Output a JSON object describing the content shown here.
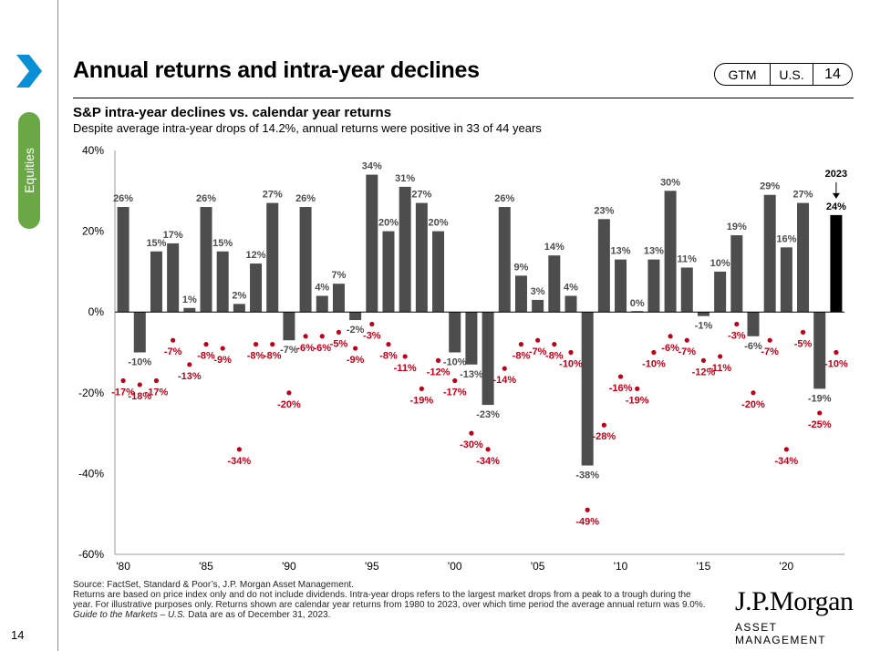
{
  "page_number": "14",
  "side_tab": "Equities",
  "icons": {
    "nav": "chevron-right-icon"
  },
  "colors": {
    "accent": "#69a845",
    "chevron": "#0a8fd6",
    "bar": "#4d4d4d",
    "bar_highlight": "#000000",
    "decline": "#c00018"
  },
  "title": "Annual returns and intra-year declines",
  "badge": {
    "gtm": "GTM",
    "region": "U.S.",
    "page": "14"
  },
  "subtitle": "S&P intra-year declines vs. calendar year returns",
  "subsubtitle": "Despite average intra-year drops of 14.2%, annual returns were positive in 33 of 44 years",
  "chart_data": {
    "type": "bar",
    "x": [
      1980,
      1981,
      1982,
      1983,
      1984,
      1985,
      1986,
      1987,
      1988,
      1989,
      1990,
      1991,
      1992,
      1993,
      1994,
      1995,
      1996,
      1997,
      1998,
      1999,
      2000,
      2001,
      2002,
      2003,
      2004,
      2005,
      2006,
      2007,
      2008,
      2009,
      2010,
      2011,
      2012,
      2013,
      2014,
      2015,
      2016,
      2017,
      2018,
      2019,
      2020,
      2021,
      2022,
      2023
    ],
    "series": [
      {
        "values": [
          26,
          -10,
          15,
          17,
          1,
          26,
          15,
          2,
          12,
          27,
          -7,
          26,
          4,
          7,
          -2,
          34,
          20,
          31,
          27,
          20,
          -10,
          -13,
          -23,
          26,
          9,
          3,
          14,
          4,
          -38,
          23,
          13,
          0,
          13,
          30,
          11,
          -1,
          10,
          19,
          -6,
          29,
          16,
          27,
          -19,
          24
        ]
      },
      {
        "values": [
          -17,
          -18,
          -17,
          -7,
          -13,
          -8,
          -9,
          -34,
          -8,
          -8,
          -20,
          -6,
          -6,
          -5,
          -9,
          -3,
          -8,
          -11,
          -19,
          -12,
          -17,
          -30,
          -34,
          -14,
          -8,
          -7,
          -8,
          -10,
          -49,
          -28,
          -16,
          -19,
          -10,
          -6,
          -7,
          -12,
          -11,
          -3,
          -20,
          -7,
          -34,
          -5,
          -25,
          -10
        ]
      }
    ],
    "highlight": {
      "label": "2023",
      "index": 43
    },
    "yticks": [
      "40%",
      "20%",
      "0%",
      "-20%",
      "-40%",
      "-60%"
    ],
    "xticks": [
      "'80",
      "'85",
      "'90",
      "'95",
      "'00",
      "'05",
      "'10",
      "'15",
      "'20"
    ],
    "ylim": [
      -60,
      40
    ],
    "grid": false
  },
  "footer": {
    "source": "Source: FactSet, Standard & Poor’s, J.P. Morgan Asset Management.",
    "note": "Returns are based on price index only and do not include dividends. Intra-year drops refers to the largest market drops from a peak to a trough during the year. For illustrative purposes only. Returns shown are calendar year returns from 1980 to 2023, over which time period the average annual return was 9.0%.",
    "guide": "Guide to the Markets – U.S.",
    "asof": " Data are as of December 31, 2023."
  },
  "brand": {
    "name": "J.P.Morgan",
    "sub": "ASSET MANAGEMENT"
  }
}
